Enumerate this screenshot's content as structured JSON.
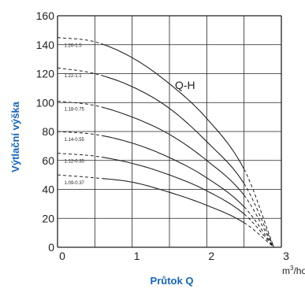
{
  "chart_data": {
    "type": "line",
    "xlabel": "Průtok Q",
    "ylabel": "Výtlační výška",
    "x_unit": "m",
    "x_unit_suffix": "/hod",
    "x_unit_sup": "3",
    "curves_title": "Q-H",
    "xlim": [
      0,
      3
    ],
    "ylim": [
      0,
      160
    ],
    "x_ticks": [
      "0",
      "1",
      "2",
      "3"
    ],
    "y_ticks": [
      "0",
      "20",
      "40",
      "60",
      "80",
      "100",
      "120",
      "140",
      "160"
    ],
    "grid": true,
    "colors": {
      "axis_title": "#1565c0",
      "curve": "#222222",
      "grid": "#222222"
    },
    "series": [
      {
        "name": "1.26-1.5",
        "shutoff": 145,
        "solid_from": 0.6,
        "solid_to": 2.5,
        "points": [
          [
            0,
            145
          ],
          [
            0.5,
            142
          ],
          [
            1,
            131
          ],
          [
            1.5,
            113
          ],
          [
            2,
            89
          ],
          [
            2.5,
            54
          ],
          [
            2.9,
            0
          ]
        ]
      },
      {
        "name": "1.22-1.1",
        "shutoff": 124,
        "solid_from": 0.6,
        "solid_to": 2.5,
        "points": [
          [
            0,
            124
          ],
          [
            0.5,
            120
          ],
          [
            1,
            111
          ],
          [
            1.5,
            96
          ],
          [
            2,
            73
          ],
          [
            2.5,
            44
          ],
          [
            2.9,
            0
          ]
        ]
      },
      {
        "name": "1.18-0.75",
        "shutoff": 101,
        "solid_from": 0.6,
        "solid_to": 2.5,
        "points": [
          [
            0,
            101
          ],
          [
            0.5,
            98
          ],
          [
            1,
            90
          ],
          [
            1.5,
            78
          ],
          [
            2,
            60
          ],
          [
            2.5,
            36
          ],
          [
            2.9,
            0
          ]
        ]
      },
      {
        "name": "1.14-0.55",
        "shutoff": 80,
        "solid_from": 0.6,
        "solid_to": 2.5,
        "points": [
          [
            0,
            80
          ],
          [
            0.5,
            78
          ],
          [
            1,
            72
          ],
          [
            1.5,
            62
          ],
          [
            2,
            48
          ],
          [
            2.5,
            28
          ],
          [
            2.9,
            0
          ]
        ]
      },
      {
        "name": "1.12-0.35",
        "shutoff": 65,
        "solid_from": 0.6,
        "solid_to": 2.5,
        "points": [
          [
            0,
            65
          ],
          [
            0.5,
            63
          ],
          [
            1,
            58
          ],
          [
            1.5,
            50
          ],
          [
            2,
            39
          ],
          [
            2.5,
            23
          ],
          [
            2.9,
            0
          ]
        ]
      },
      {
        "name": "1.09-0.37",
        "shutoff": 50,
        "solid_from": 0.6,
        "solid_to": 2.5,
        "points": [
          [
            0,
            50
          ],
          [
            0.5,
            48
          ],
          [
            1,
            45
          ],
          [
            1.5,
            38
          ],
          [
            2,
            29
          ],
          [
            2.5,
            17
          ],
          [
            2.9,
            0
          ]
        ]
      }
    ]
  }
}
